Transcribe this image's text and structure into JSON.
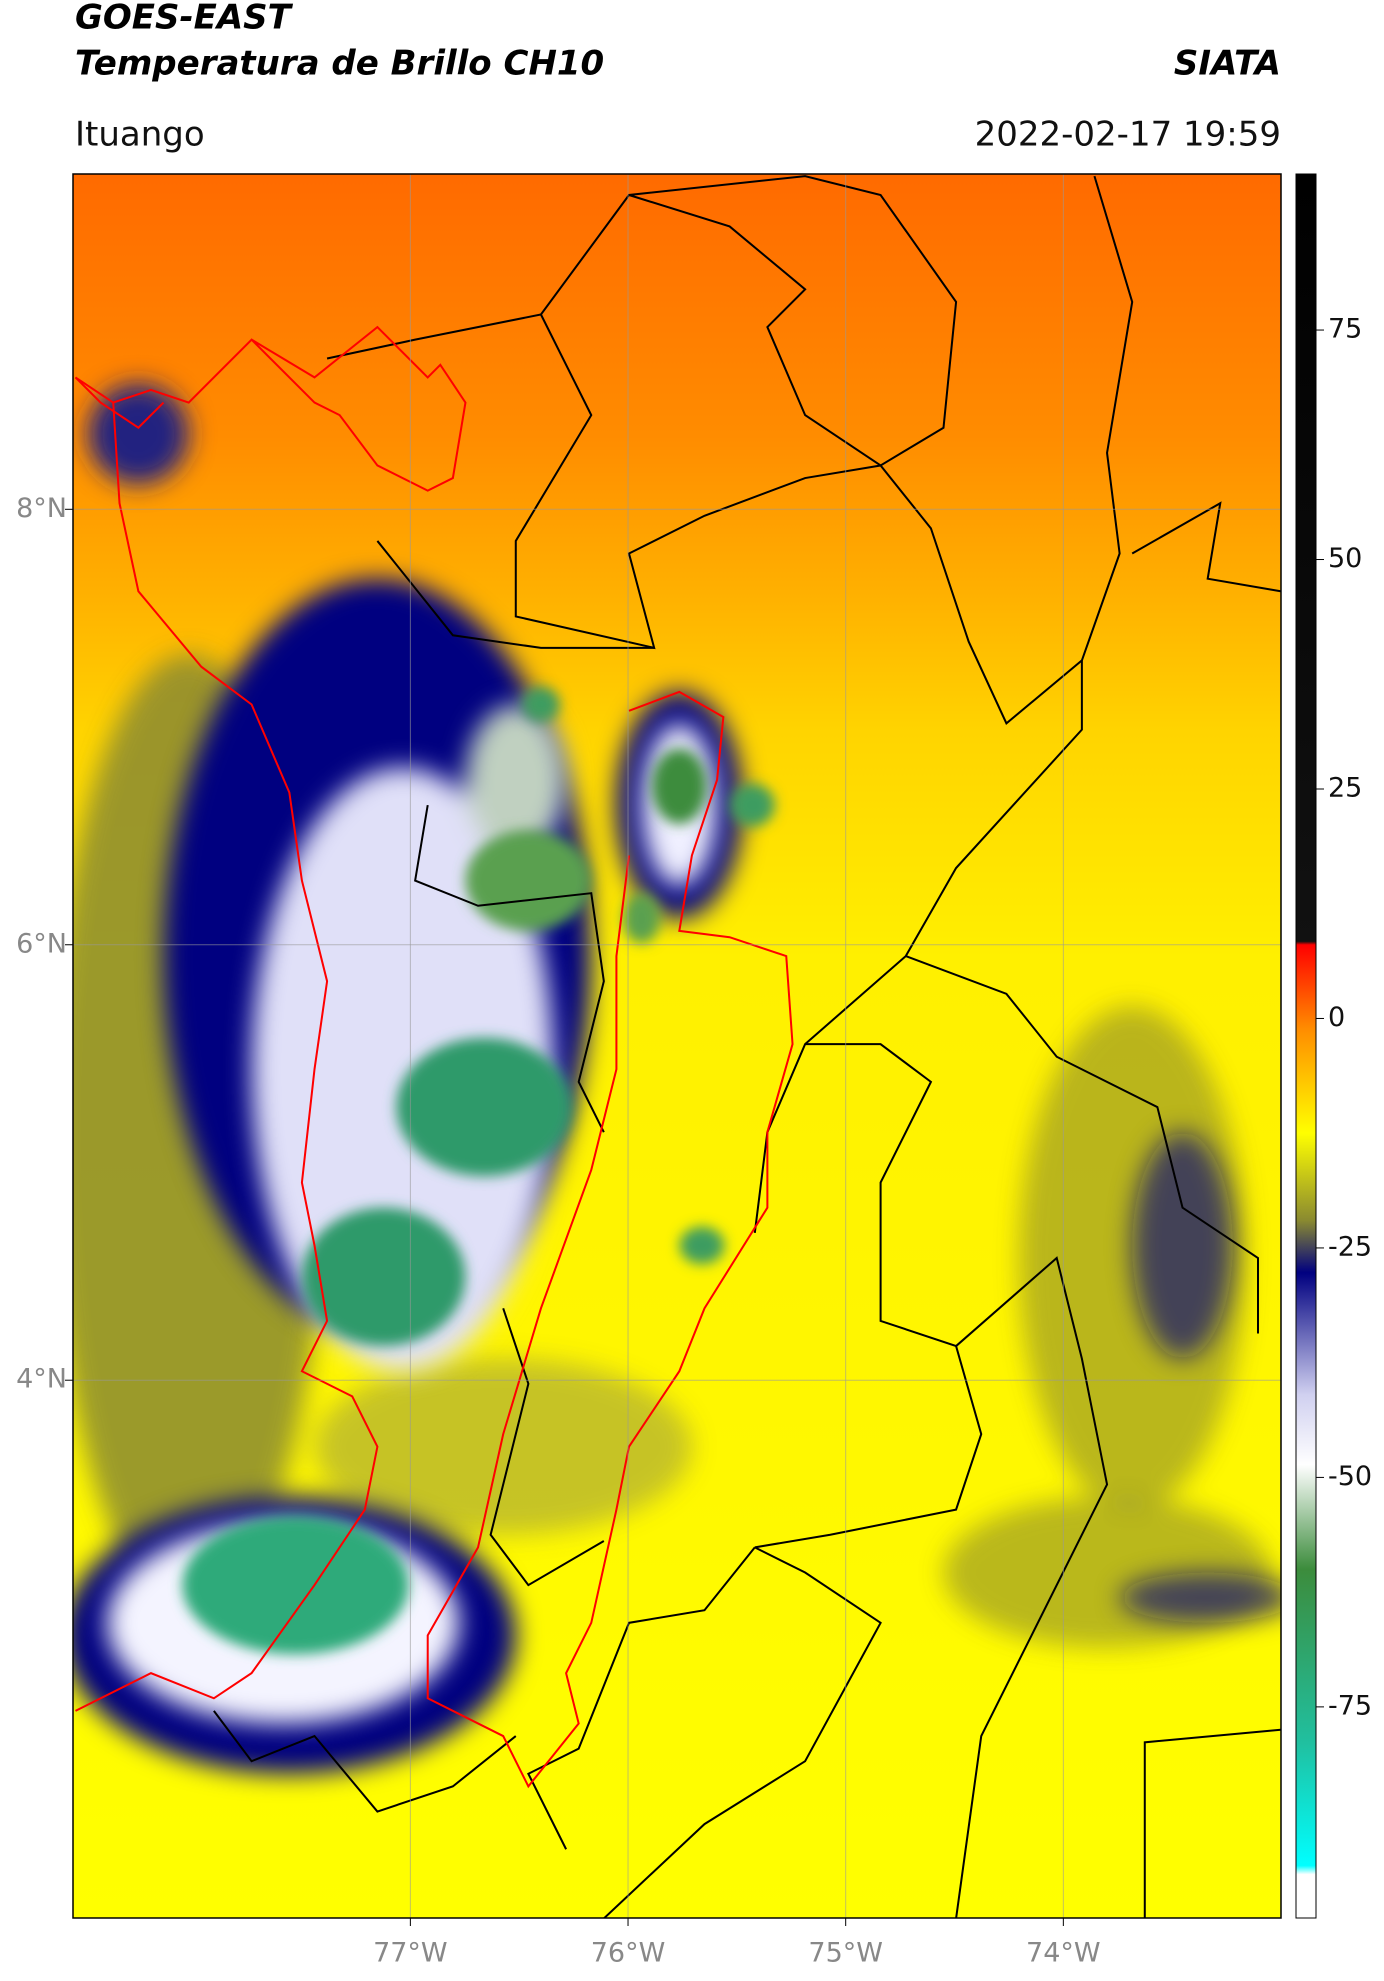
{
  "chart_data": {
    "type": "map",
    "title": "GOES-EAST",
    "subtitle": "Temperatura de Brillo CH10",
    "source": "SIATA",
    "location": "Ituango",
    "datetime": "2022-02-17 19:59",
    "xlim": [
      -78.55,
      -73.0
    ],
    "ylim": [
      1.53,
      9.54
    ],
    "xticks": [
      {
        "value": -77,
        "label": "77°W"
      },
      {
        "value": -76,
        "label": "76°W"
      },
      {
        "value": -75,
        "label": "75°W"
      },
      {
        "value": -74,
        "label": "74°W"
      }
    ],
    "yticks": [
      {
        "value": 8,
        "label": "8°N"
      },
      {
        "value": 6,
        "label": "6°N"
      },
      {
        "value": 4,
        "label": "4°N"
      }
    ],
    "grid": true,
    "colorbar": {
      "lim": [
        -98,
        92
      ],
      "ticks": [
        75,
        50,
        25,
        0,
        -25,
        -50,
        -75
      ]
    }
  }
}
